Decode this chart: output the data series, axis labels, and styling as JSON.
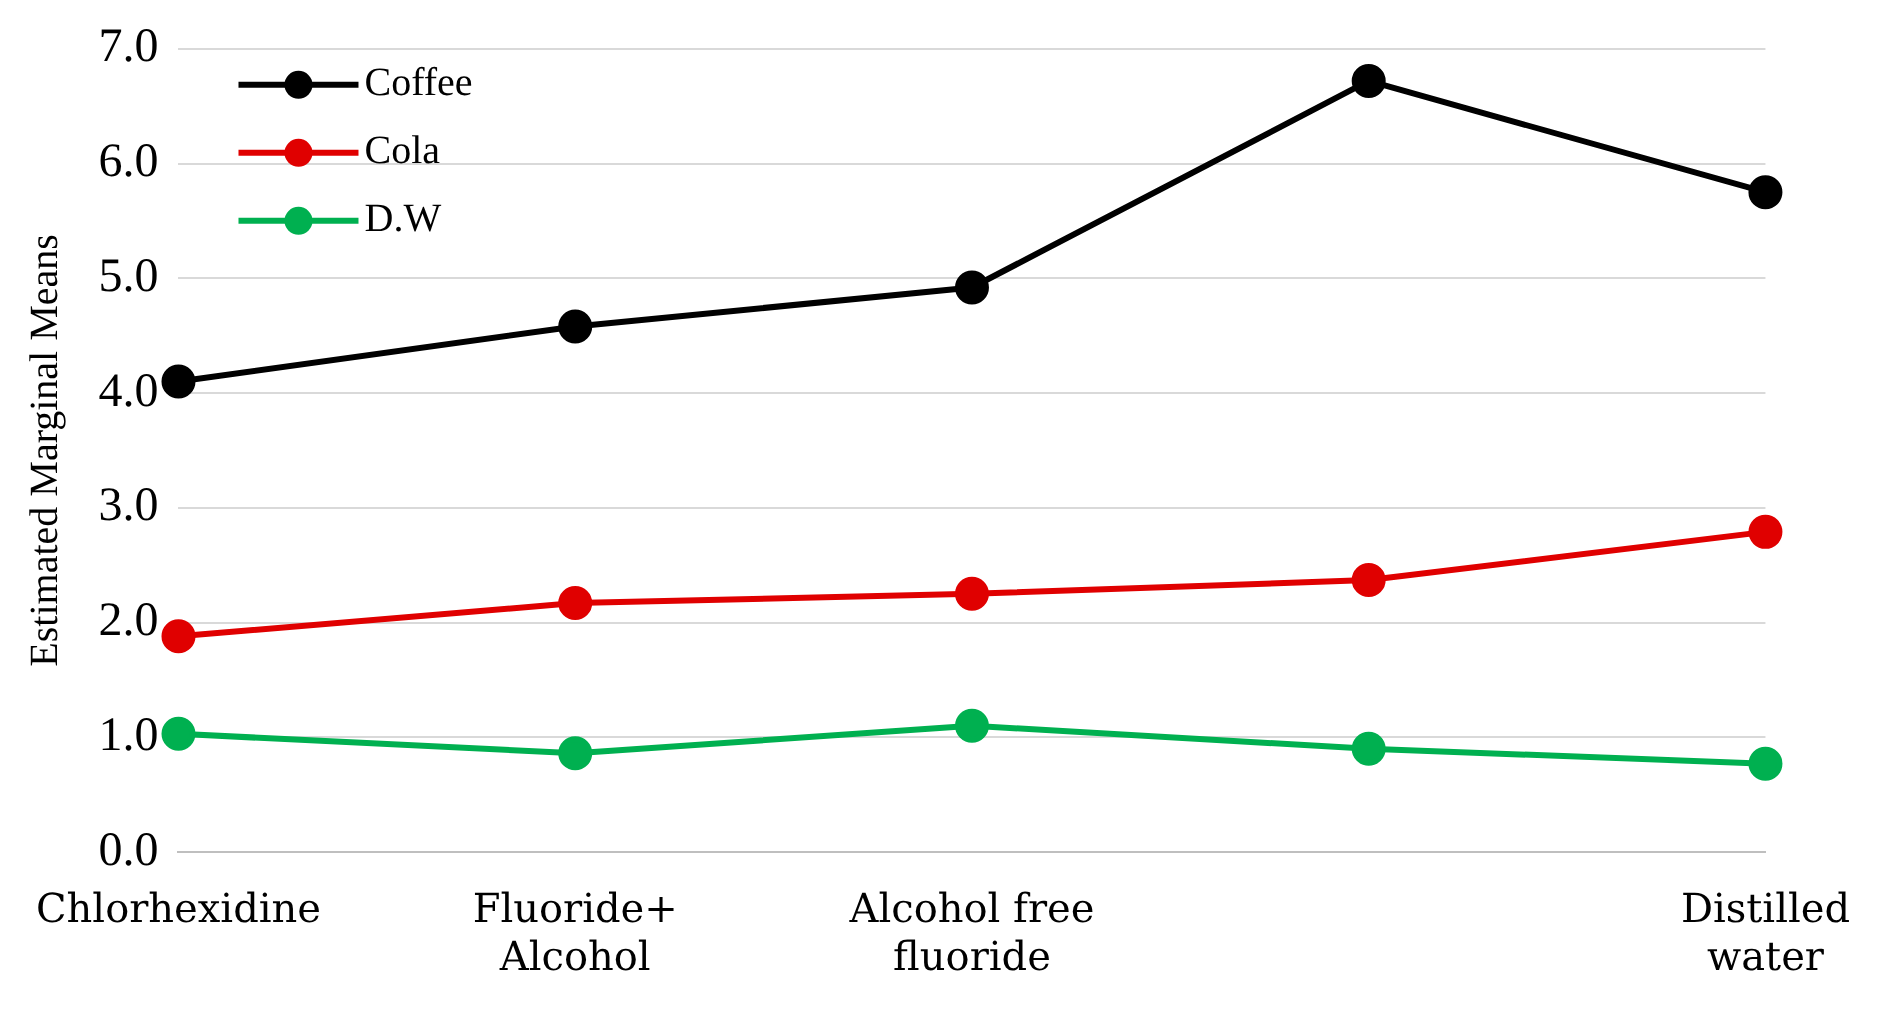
{
  "chart_data": {
    "type": "line",
    "ylabel": "Estimated Marginal Means",
    "categories": [
      "Chlorhexidine",
      "Fluoride+ Alcohol",
      "Alcohol free fluoride",
      null,
      "Distilled water"
    ],
    "series": [
      {
        "name": "Coffee",
        "color": "#000000",
        "values": [
          4.1,
          4.58,
          4.92,
          6.72,
          5.75
        ]
      },
      {
        "name": "Cola",
        "color": "#e00000",
        "values": [
          1.88,
          2.17,
          2.25,
          2.37,
          2.79
        ]
      },
      {
        "name": "D.W",
        "color": "#00b050",
        "values": [
          1.03,
          0.86,
          1.1,
          0.9,
          0.77
        ]
      }
    ],
    "ylim": [
      0,
      7
    ],
    "yticks": [
      {
        "value": 0,
        "label": "0.0"
      },
      {
        "value": 1,
        "label": "1.0"
      },
      {
        "value": 2,
        "label": "2.0"
      },
      {
        "value": 3,
        "label": "3.0"
      },
      {
        "value": 4,
        "label": "4.0"
      },
      {
        "value": 5,
        "label": "5.0"
      },
      {
        "value": 6,
        "label": "6.0"
      },
      {
        "value": 7,
        "label": "7.0"
      }
    ],
    "grid": "y",
    "legend": "top left",
    "marker": "circle",
    "line_style": "solid"
  }
}
